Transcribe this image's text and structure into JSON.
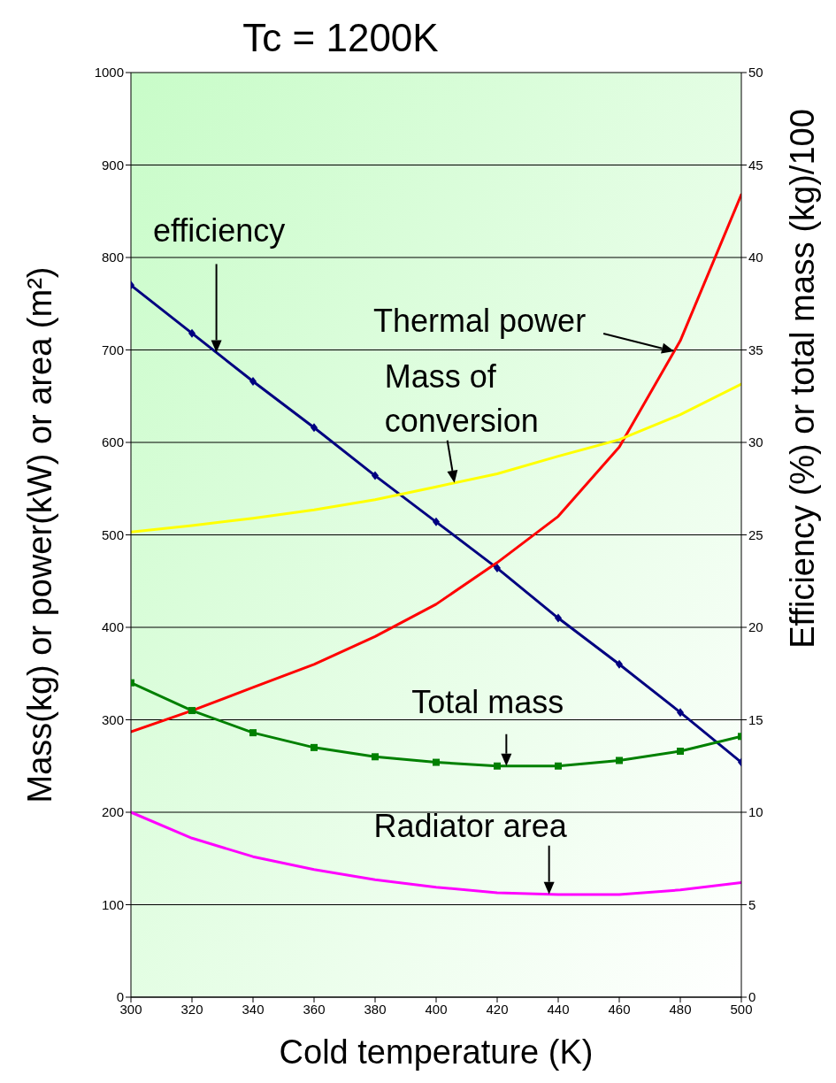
{
  "chart_data": {
    "type": "line",
    "title": "Tc = 1200K",
    "xlabel": "Cold temperature (K)",
    "ylabel": "Mass(kg) or power(kW) or area (m²)",
    "y2label": "Efficiency (%)  or total mass (kg)/100",
    "x": [
      300,
      320,
      340,
      360,
      380,
      400,
      420,
      440,
      460,
      480,
      500
    ],
    "series": [
      {
        "name": "efficiency",
        "color": "#000080",
        "axis": "y2",
        "marker": "diamond",
        "values": [
          38.5,
          35.9,
          33.3,
          30.8,
          28.2,
          25.7,
          23.2,
          20.5,
          18.0,
          15.4,
          12.7
        ]
      },
      {
        "name": "Thermal power",
        "color": "#ff0000",
        "values": [
          287,
          310,
          335,
          360,
          390,
          425,
          470,
          520,
          595,
          710,
          868
        ]
      },
      {
        "name": "Mass of conversion",
        "color": "#ffff00",
        "values": [
          503,
          510,
          518,
          527,
          538,
          552,
          566,
          585,
          603,
          630,
          663
        ]
      },
      {
        "name": "Total mass",
        "color": "#008000",
        "axis": "y2",
        "marker": "square",
        "values": [
          17.0,
          15.5,
          14.3,
          13.5,
          13.0,
          12.7,
          12.5,
          12.5,
          12.8,
          13.3,
          14.1
        ]
      },
      {
        "name": "Radiator area",
        "color": "#ff00ff",
        "values": [
          200,
          172,
          152,
          138,
          127,
          119,
          113,
          111,
          111,
          116,
          124
        ]
      }
    ],
    "xlim": [
      300,
      500
    ],
    "xticks": [
      300,
      320,
      340,
      360,
      380,
      400,
      420,
      440,
      460,
      480,
      500
    ],
    "ylim": [
      0,
      1000
    ],
    "yticks": [
      0,
      100,
      200,
      300,
      400,
      500,
      600,
      700,
      800,
      900,
      1000
    ],
    "y2lim": [
      0,
      50
    ],
    "y2ticks": [
      0,
      5,
      10,
      15,
      20,
      25,
      30,
      35,
      40,
      45,
      50
    ],
    "grid": "y",
    "legend": false,
    "marker": "none",
    "line_style": "solid"
  }
}
